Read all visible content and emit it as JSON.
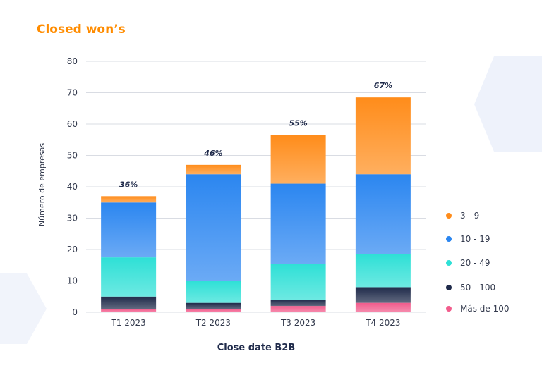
{
  "chart_data": {
    "type": "bar",
    "stacked": true,
    "title": "Closed won’s",
    "xlabel": "Close date B2B",
    "ylabel": "Número de empresas",
    "ylim": [
      0,
      80
    ],
    "yticks": [
      0,
      10,
      20,
      30,
      40,
      50,
      60,
      70,
      80
    ],
    "grid": true,
    "legend_position": "right",
    "categories": [
      "T1 2023",
      "T2 2023",
      "T3 2023",
      "T4 2023"
    ],
    "top_labels": [
      "36%",
      "46%",
      "55%",
      "67%"
    ],
    "series": [
      {
        "name": "Más de 100",
        "values": [
          1,
          1,
          2,
          3
        ],
        "color": "#f25c8c"
      },
      {
        "name": "50 - 100",
        "values": [
          4,
          2,
          2,
          5
        ],
        "color": "#1f2a4a"
      },
      {
        "name": "20 - 49",
        "values": [
          12.5,
          7,
          11.5,
          10.5
        ],
        "color": "#2ee0d6"
      },
      {
        "name": "10 - 19",
        "values": [
          17.5,
          34,
          25.5,
          25.5
        ],
        "color": "#2b86f0"
      },
      {
        "name": "3 - 9",
        "values": [
          2,
          3,
          15.5,
          24.5
        ],
        "color": "#ff8c1a"
      }
    ],
    "legend_order": [
      "3 - 9",
      "10 - 19",
      "20 - 49",
      "50 - 100",
      "Más de 100"
    ]
  },
  "colors": {
    "title": "#ff8c00",
    "grid": "#d9dce3",
    "axis_text": "#333a4d",
    "annotation": "#1f2a4a",
    "hexagon": "#eef2fb"
  }
}
